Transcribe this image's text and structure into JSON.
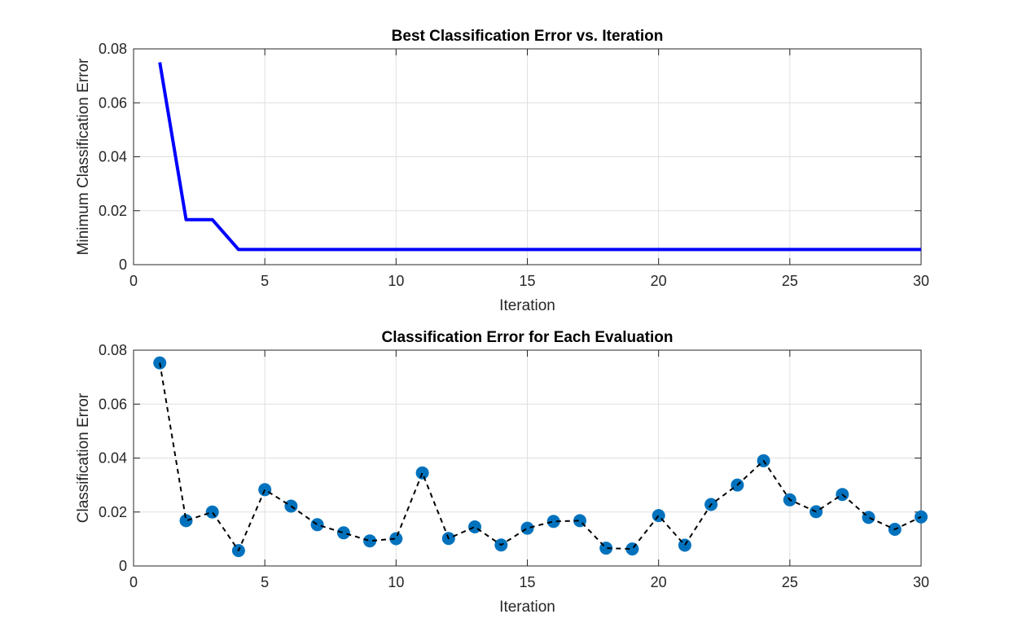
{
  "chart_data": [
    {
      "type": "line",
      "title": "Best Classification Error vs. Iteration",
      "xlabel": "Iteration",
      "ylabel": "Minimum Classification Error",
      "xlim": [
        0,
        30
      ],
      "ylim": [
        0,
        0.08
      ],
      "xticks": [
        "0",
        "5",
        "10",
        "15",
        "20",
        "25",
        "30"
      ],
      "yticks": [
        "0",
        "0.02",
        "0.04",
        "0.06",
        "0.08"
      ],
      "grid": true,
      "series": [
        {
          "color": "#0000ff",
          "line_style": "solid",
          "marker": "none",
          "x": [
            1,
            2,
            3,
            4,
            5,
            6,
            7,
            8,
            9,
            10,
            11,
            12,
            13,
            14,
            15,
            16,
            17,
            18,
            19,
            20,
            21,
            22,
            23,
            24,
            25,
            26,
            27,
            28,
            29,
            30
          ],
          "y": [
            0.075,
            0.0167,
            0.0167,
            0.0056,
            0.0056,
            0.0056,
            0.0056,
            0.0056,
            0.0056,
            0.0056,
            0.0056,
            0.0056,
            0.0056,
            0.0056,
            0.0056,
            0.0056,
            0.0056,
            0.0056,
            0.0056,
            0.0056,
            0.0056,
            0.0056,
            0.0056,
            0.0056,
            0.0056,
            0.0056,
            0.0056,
            0.0056,
            0.0056,
            0.0056
          ]
        }
      ]
    },
    {
      "type": "line",
      "title": "Classification Error for Each Evaluation",
      "xlabel": "Iteration",
      "ylabel": "Classification Error",
      "xlim": [
        0,
        30
      ],
      "ylim": [
        0,
        0.08
      ],
      "xticks": [
        "0",
        "5",
        "10",
        "15",
        "20",
        "25",
        "30"
      ],
      "yticks": [
        "0",
        "0.02",
        "0.04",
        "0.06",
        "0.08"
      ],
      "grid": true,
      "series": [
        {
          "color": "#000000",
          "marker_color": "#0072bd",
          "line_style": "dashed",
          "marker": "filled-circle",
          "x": [
            1,
            2,
            3,
            4,
            5,
            6,
            7,
            8,
            9,
            10,
            11,
            12,
            13,
            14,
            15,
            16,
            17,
            18,
            19,
            20,
            21,
            22,
            23,
            24,
            25,
            26,
            27,
            28,
            29,
            30
          ],
          "y": [
            0.0753,
            0.0168,
            0.02,
            0.0057,
            0.0283,
            0.0222,
            0.0153,
            0.0123,
            0.0093,
            0.0101,
            0.0345,
            0.0102,
            0.0145,
            0.0078,
            0.014,
            0.0165,
            0.0168,
            0.0066,
            0.0063,
            0.0187,
            0.0077,
            0.0228,
            0.03,
            0.039,
            0.0245,
            0.0201,
            0.0265,
            0.018,
            0.0136,
            0.0182
          ]
        }
      ]
    }
  ]
}
